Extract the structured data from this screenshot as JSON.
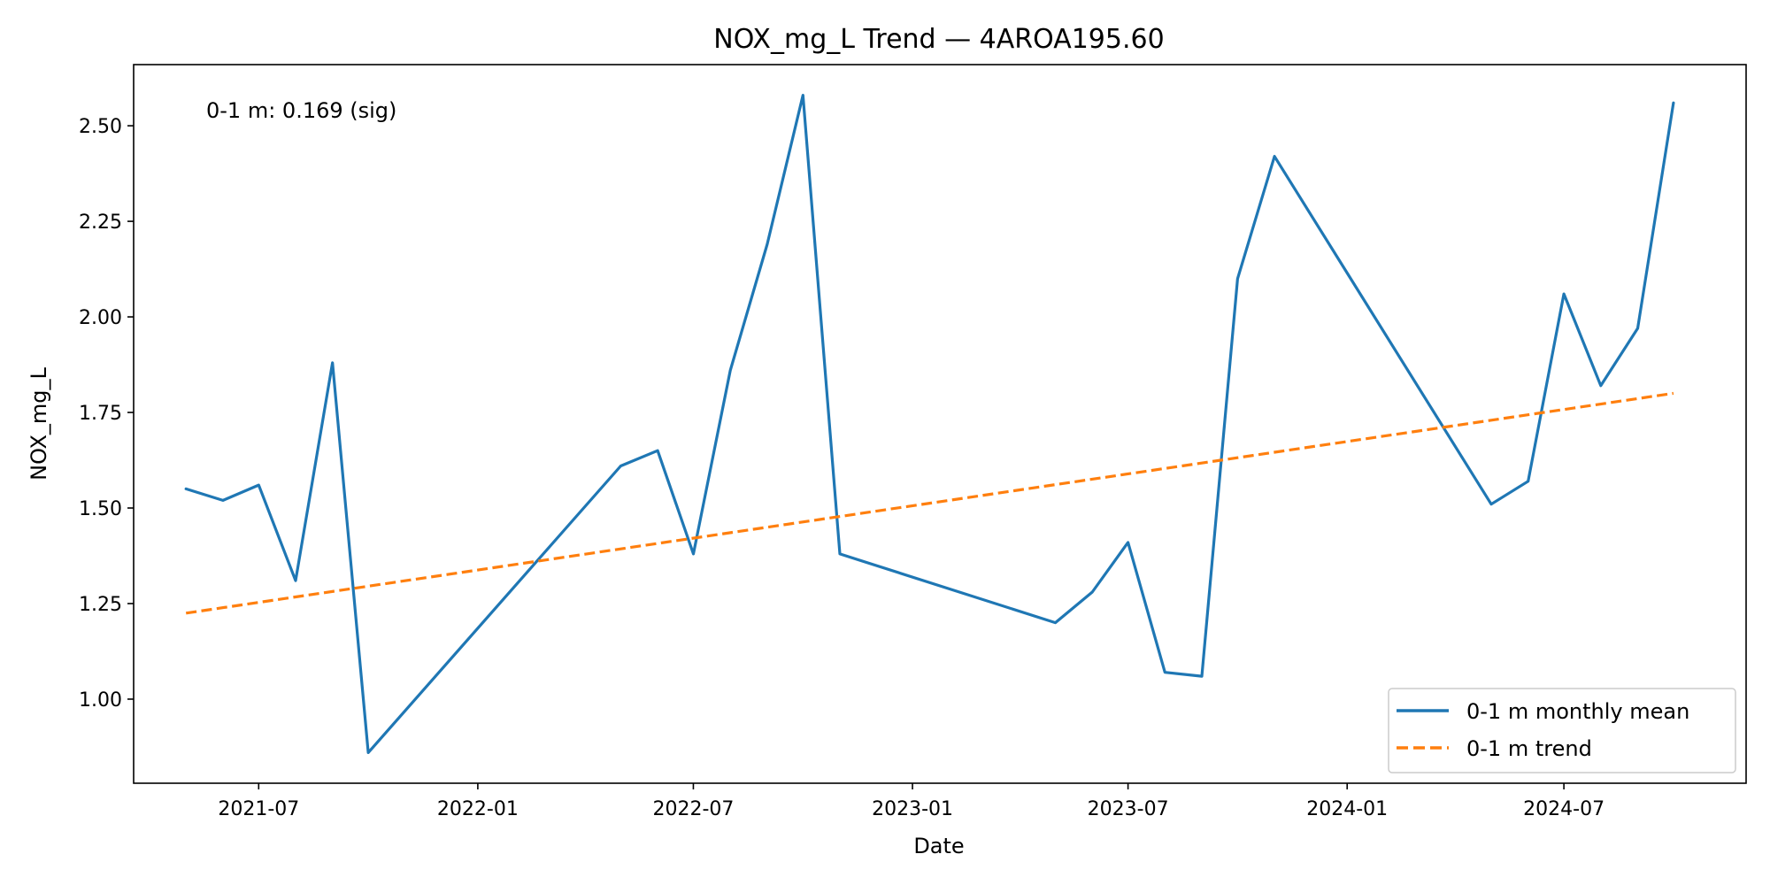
{
  "chart_data": {
    "type": "line",
    "title": "NOX_mg_L Trend — 4AROA195.60",
    "xlabel": "Date",
    "ylabel": "NOX_mg_L",
    "annotation": "0-1 m: 0.169 (sig)",
    "xlim": [
      "2021-03-18",
      "2024-12-01"
    ],
    "ylim": [
      0.78,
      2.66
    ],
    "x_ticks": [
      "2021-07",
      "2022-01",
      "2022-07",
      "2023-01",
      "2023-07",
      "2024-01",
      "2024-07"
    ],
    "y_ticks": [
      "1.00",
      "1.25",
      "1.50",
      "1.75",
      "2.00",
      "2.25",
      "2.50"
    ],
    "grid": false,
    "legend_position": "lower-right",
    "series": [
      {
        "name": "0-1 m monthly mean",
        "style": "solid",
        "color": "#1f77b4",
        "x": [
          "2021-05-01",
          "2021-06-01",
          "2021-07-01",
          "2021-08-01",
          "2021-09-01",
          "2021-10-01",
          "2022-05-01",
          "2022-06-01",
          "2022-07-01",
          "2022-08-01",
          "2022-09-01",
          "2022-10-01",
          "2022-11-01",
          "2023-05-01",
          "2023-06-01",
          "2023-07-01",
          "2023-08-01",
          "2023-09-01",
          "2023-10-01",
          "2023-11-01",
          "2024-05-01",
          "2024-06-01",
          "2024-07-01",
          "2024-08-01",
          "2024-09-01",
          "2024-10-01"
        ],
        "y": [
          1.55,
          1.52,
          1.56,
          1.31,
          1.88,
          0.86,
          1.61,
          1.65,
          1.38,
          1.86,
          2.19,
          2.58,
          1.38,
          1.2,
          1.28,
          1.41,
          1.07,
          1.06,
          2.1,
          2.42,
          1.51,
          1.57,
          2.06,
          1.82,
          1.97,
          2.56
        ]
      },
      {
        "name": "0-1 m trend",
        "style": "dashed",
        "color": "#ff7f0e",
        "x": [
          "2021-05-01",
          "2024-10-01"
        ],
        "y": [
          1.225,
          1.8
        ]
      }
    ]
  }
}
